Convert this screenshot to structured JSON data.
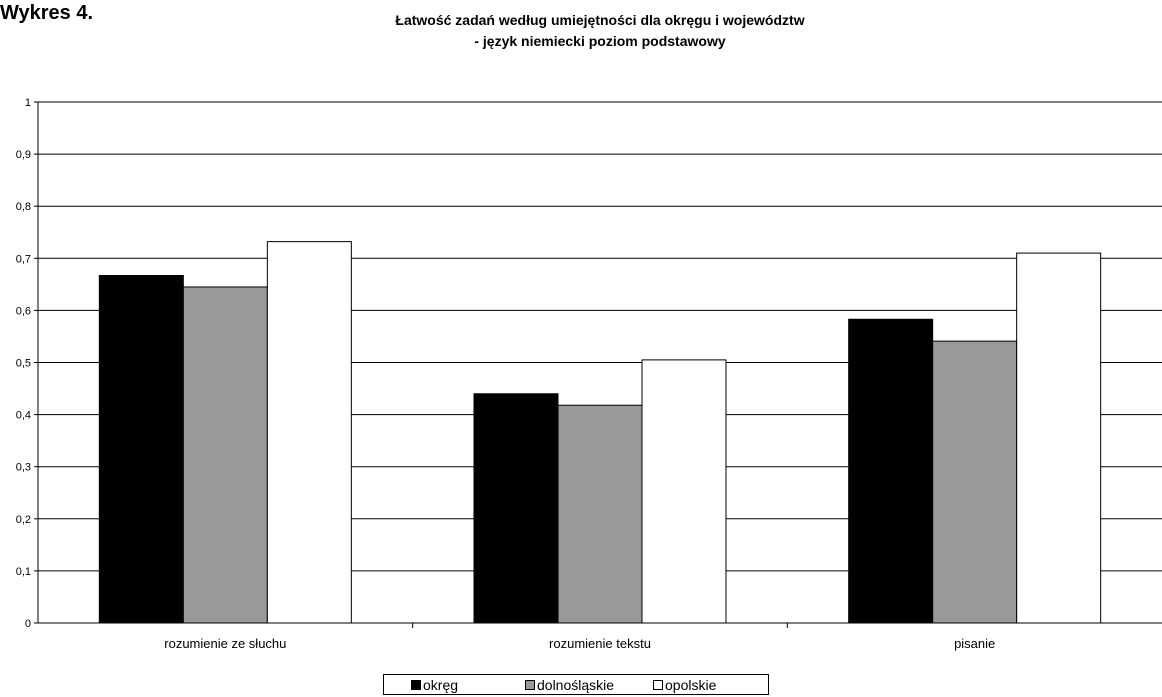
{
  "figure_label": "Wykres 4.",
  "chart_data": {
    "type": "bar",
    "title": "Łatwość zadań według umiejętności dla okręgu i województw",
    "subtitle": "- język niemiecki poziom podstawowy",
    "xlabel": "",
    "ylabel": "",
    "ylim": [
      0,
      1
    ],
    "yticks": [
      "0",
      "0,1",
      "0,2",
      "0,3",
      "0,4",
      "0,5",
      "0,6",
      "0,7",
      "0,8",
      "0,9",
      "1"
    ],
    "grid": true,
    "legend_position": "bottom",
    "categories": [
      "rozumienie ze słuchu",
      "rozumienie tekstu",
      "pisanie"
    ],
    "series": [
      {
        "name": "okręg",
        "color": "#000000",
        "values": [
          0.667,
          0.44,
          0.583
        ]
      },
      {
        "name": "dolnośląskie",
        "color": "#999999",
        "values": [
          0.645,
          0.418,
          0.541
        ]
      },
      {
        "name": "opolskie",
        "color": "#ffffff",
        "values": [
          0.732,
          0.505,
          0.71
        ]
      }
    ]
  }
}
